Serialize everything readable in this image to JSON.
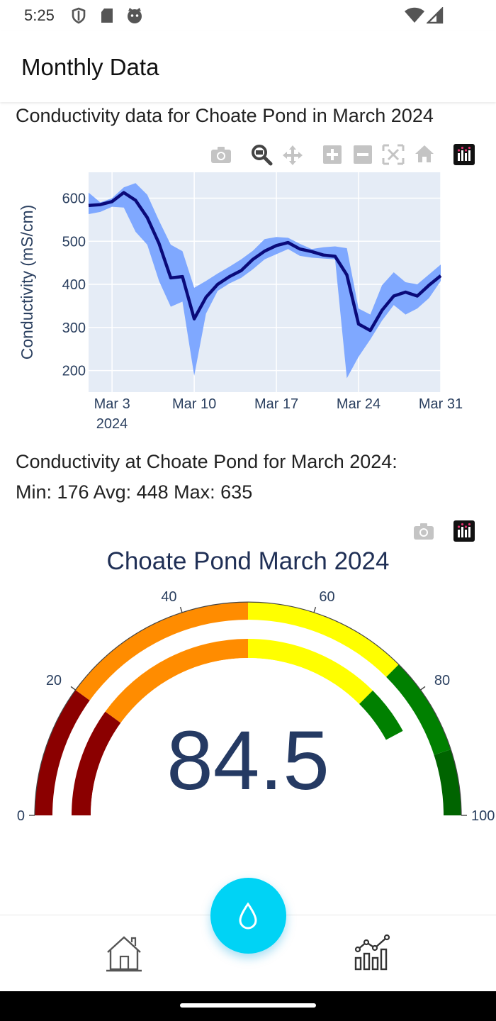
{
  "status_bar": {
    "time": "5:25"
  },
  "app_bar": {
    "title": "Monthly Data"
  },
  "chart": {
    "title": "Conductivity data for Choate Pond in March 2024"
  },
  "chart_data": {
    "type": "line",
    "title": "Conductivity data for Choate Pond in March 2024",
    "xlabel": "",
    "ylabel": "Conductivity  (mS/cm)",
    "x_tick_labels": [
      "Mar 3",
      "Mar 10",
      "Mar 17",
      "Mar 24",
      "Mar 31"
    ],
    "x_tick_year": "2024",
    "y_tick_labels": [
      "200",
      "300",
      "400",
      "500",
      "600"
    ],
    "xlim": [
      1,
      31
    ],
    "ylim": [
      150,
      660
    ],
    "grid": true,
    "series": [
      {
        "kind": "average-line",
        "color": "#0a0a7a",
        "x": [
          1,
          2,
          3,
          4,
          5,
          6,
          7,
          8,
          9,
          10,
          11,
          12,
          13,
          14,
          15,
          16,
          17,
          18,
          19,
          20,
          21,
          22,
          23,
          24,
          25,
          26,
          27,
          28,
          29,
          30,
          31
        ],
        "y": [
          583,
          585,
          592,
          613,
          595,
          555,
          495,
          415,
          418,
          320,
          370,
          400,
          418,
          432,
          458,
          477,
          490,
          497,
          482,
          476,
          468,
          465,
          422,
          308,
          293,
          340,
          373,
          382,
          373,
          398,
          420
        ]
      },
      {
        "kind": "min-max-band",
        "color": "#7fa8ff",
        "x": [
          1,
          2,
          3,
          4,
          5,
          6,
          7,
          8,
          9,
          10,
          11,
          12,
          13,
          14,
          15,
          16,
          17,
          18,
          19,
          20,
          21,
          22,
          23,
          24,
          25,
          26,
          27,
          28,
          29,
          30,
          31
        ],
        "max": [
          613,
          590,
          600,
          625,
          635,
          608,
          548,
          492,
          477,
          392,
          408,
          425,
          441,
          458,
          478,
          505,
          510,
          508,
          494,
          482,
          486,
          488,
          484,
          344,
          330,
          398,
          428,
          405,
          400,
          423,
          446
        ],
        "min": [
          563,
          568,
          580,
          578,
          522,
          492,
          408,
          348,
          360,
          188,
          332,
          385,
          402,
          415,
          435,
          458,
          470,
          482,
          466,
          462,
          460,
          458,
          182,
          232,
          272,
          316,
          352,
          330,
          344,
          368,
          408
        ]
      }
    ]
  },
  "stats": {
    "line1": "Conductivity at Choate Pond for March 2024:",
    "line2": "Min: 176 Avg: 448 Max: 635"
  },
  "gauge": {
    "title": "Choate Pond March 2024",
    "value_text": "84.5",
    "value": 84.5,
    "range": [
      0,
      100
    ],
    "tick_labels": [
      "0",
      "20",
      "40",
      "60",
      "80",
      "100"
    ],
    "outer_steps": [
      {
        "from": 0,
        "to": 20,
        "color": "#8b0000"
      },
      {
        "from": 20,
        "to": 50,
        "color": "#ff8c00"
      },
      {
        "from": 50,
        "to": 75,
        "color": "#ffff00"
      },
      {
        "from": 75,
        "to": 90,
        "color": "#008000"
      },
      {
        "from": 90,
        "to": 100,
        "color": "#006400"
      }
    ],
    "inner_bar_color_steps": [
      {
        "from": 0,
        "to": 20,
        "color": "#8b0000"
      },
      {
        "from": 20,
        "to": 50,
        "color": "#ff8c00"
      },
      {
        "from": 50,
        "to": 75,
        "color": "#ffff00"
      },
      {
        "from": 75,
        "to": 84.5,
        "color": "#008000"
      }
    ],
    "threshold_color": "#ffffff"
  },
  "toolbar": {
    "chart_icons": [
      "camera-icon",
      "zoom-icon",
      "pan-icon",
      "zoom-in-icon",
      "zoom-out-icon",
      "autoscale-icon",
      "home-icon",
      "plotly-logo-icon"
    ],
    "gauge_icons": [
      "camera-icon",
      "plotly-logo-icon"
    ]
  },
  "bottom_nav": {
    "items": [
      "home-nav-icon",
      "water-drop-fab-icon",
      "chart-nav-icon"
    ],
    "accent": "#00d3f5"
  }
}
